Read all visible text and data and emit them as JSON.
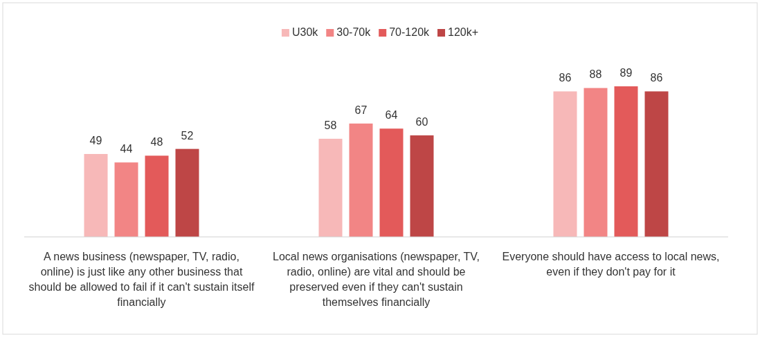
{
  "chart_data": {
    "type": "bar",
    "categories": [
      "A news business (newspaper, TV, radio, online) is just like any other business that should be allowed to fail if it can't sustain itself financially",
      "Local news organisations (newspaper, TV, radio, online) are vital and should be preserved even if they can't sustain themselves financially",
      "Everyone should have access to local news, even if they don't pay for it"
    ],
    "series": [
      {
        "name": "U30k",
        "color": "#f7b8b8",
        "values": [
          49,
          58,
          86
        ]
      },
      {
        "name": "30-70k",
        "color": "#f28585",
        "values": [
          44,
          67,
          88
        ]
      },
      {
        "name": "70-120k",
        "color": "#e35a5a",
        "values": [
          48,
          64,
          89
        ]
      },
      {
        "name": "120k+",
        "color": "#be4646",
        "values": [
          52,
          60,
          86
        ]
      }
    ],
    "data_labels": true,
    "legend": "top"
  }
}
